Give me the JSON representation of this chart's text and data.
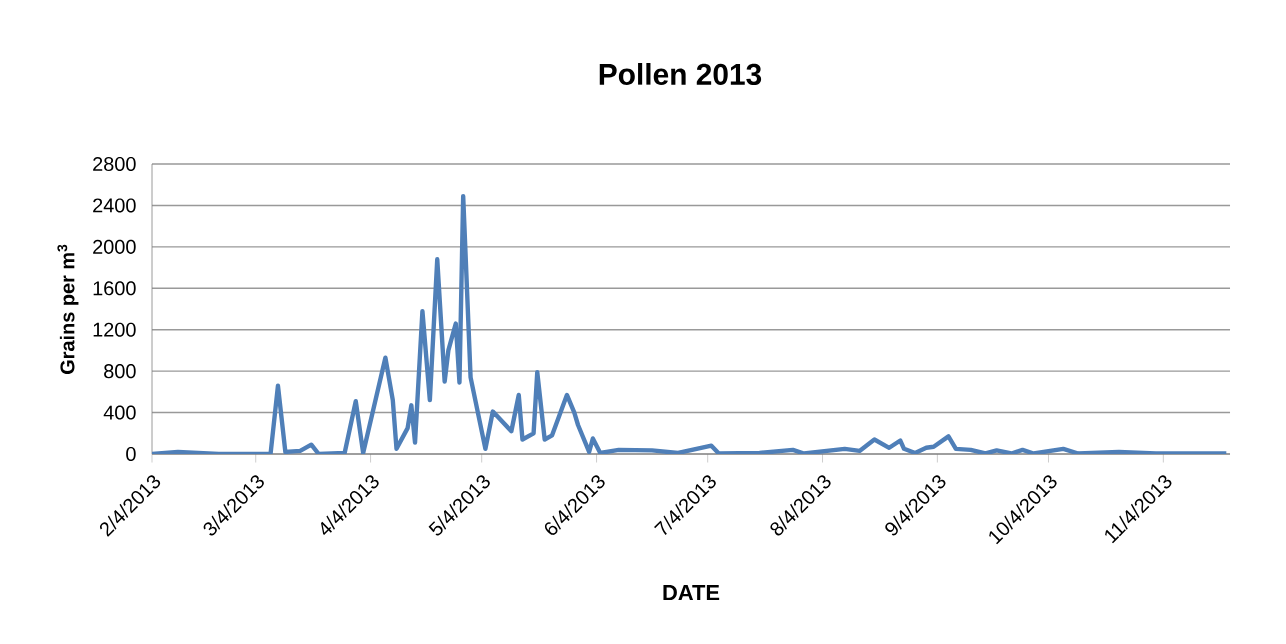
{
  "chart_data": {
    "type": "line",
    "title": "Pollen 2013",
    "xlabel": "DATE",
    "ylabel": "Grains per m$^{3}$",
    "x": [
      "2013-02-04",
      "2013-02-11",
      "2013-02-22",
      "2013-03-08",
      "2013-03-10",
      "2013-03-12",
      "2013-03-16",
      "2013-03-19",
      "2013-03-21",
      "2013-03-28",
      "2013-03-31",
      "2013-04-02",
      "2013-04-08",
      "2013-04-10",
      "2013-04-11",
      "2013-04-14",
      "2013-04-15",
      "2013-04-16",
      "2013-04-18",
      "2013-04-20",
      "2013-04-22",
      "2013-04-24",
      "2013-04-25",
      "2013-04-27",
      "2013-04-28",
      "2013-04-29",
      "2013-05-01",
      "2013-05-05",
      "2013-05-07",
      "2013-05-12",
      "2013-05-14",
      "2013-05-15",
      "2013-05-18",
      "2013-05-19",
      "2013-05-21",
      "2013-05-23",
      "2013-05-27",
      "2013-05-29",
      "2013-05-30",
      "2013-06-02",
      "2013-06-03",
      "2013-06-05",
      "2013-06-10",
      "2013-06-19",
      "2013-06-26",
      "2013-07-05",
      "2013-07-07",
      "2013-07-18",
      "2013-07-27",
      "2013-07-30",
      "2013-08-10",
      "2013-08-14",
      "2013-08-18",
      "2013-08-22",
      "2013-08-25",
      "2013-08-26",
      "2013-08-29",
      "2013-09-01",
      "2013-09-03",
      "2013-09-07",
      "2013-09-09",
      "2013-09-13",
      "2013-09-17",
      "2013-09-20",
      "2013-09-24",
      "2013-09-27",
      "2013-09-30",
      "2013-10-08",
      "2013-10-12",
      "2013-10-23",
      "2013-11-02",
      "2013-11-21"
    ],
    "series": [
      {
        "color": "#4f7fb8",
        "values": [
          0,
          20,
          0,
          0,
          660,
          20,
          30,
          90,
          0,
          10,
          510,
          10,
          930,
          520,
          50,
          250,
          470,
          110,
          1380,
          520,
          1880,
          700,
          1000,
          1260,
          690,
          2490,
          740,
          50,
          410,
          220,
          570,
          140,
          200,
          790,
          140,
          180,
          570,
          400,
          280,
          20,
          150,
          10,
          40,
          35,
          10,
          80,
          5,
          10,
          40,
          5,
          50,
          30,
          140,
          60,
          130,
          50,
          10,
          60,
          70,
          170,
          50,
          40,
          5,
          35,
          5,
          40,
          5,
          50,
          5,
          20,
          5,
          5
        ]
      }
    ],
    "xlim": [
      "2013-02-04",
      "2013-11-22"
    ],
    "xticks": [
      {
        "value": "2013-02-04",
        "label": "2/4/2013"
      },
      {
        "value": "2013-03-04",
        "label": "3/4/2013"
      },
      {
        "value": "2013-04-04",
        "label": "4/4/2013"
      },
      {
        "value": "2013-05-04",
        "label": "5/4/2013"
      },
      {
        "value": "2013-06-04",
        "label": "6/4/2013"
      },
      {
        "value": "2013-07-04",
        "label": "7/4/2013"
      },
      {
        "value": "2013-08-04",
        "label": "8/4/2013"
      },
      {
        "value": "2013-09-04",
        "label": "9/4/2013"
      },
      {
        "value": "2013-10-04",
        "label": "10/4/2013"
      },
      {
        "value": "2013-11-04",
        "label": "11/4/2013"
      }
    ],
    "ylim": [
      0,
      2800
    ],
    "yticks": [
      0,
      400,
      800,
      1200,
      1600,
      2000,
      2400,
      2800
    ],
    "grid": "y",
    "marker": "none",
    "line_style": "solid"
  }
}
